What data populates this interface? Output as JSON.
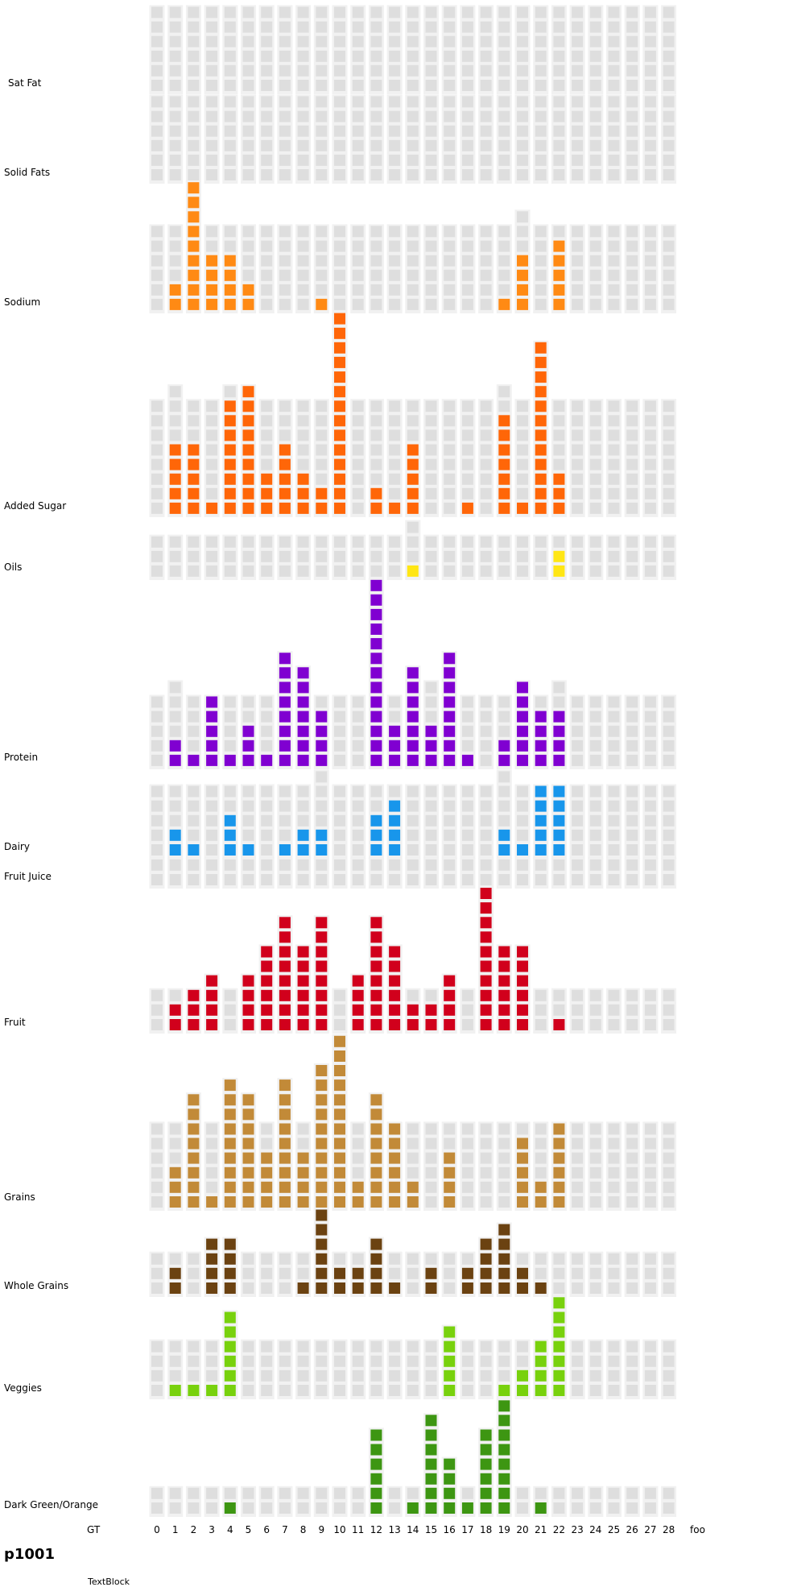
{
  "participant": "p1001",
  "textblock": "TextBlock",
  "chart_data": {
    "type": "heatmap",
    "x_axis_label": "GT",
    "x_ticks": [
      "0",
      "1",
      "2",
      "3",
      "4",
      "5",
      "6",
      "7",
      "8",
      "9",
      "10",
      "11",
      "12",
      "13",
      "14",
      "15",
      "16",
      "17",
      "18",
      "19",
      "20",
      "21",
      "22",
      "23",
      "24",
      "25",
      "26",
      "27",
      "28",
      "foo"
    ],
    "empty_color": "#dedede",
    "rows": [
      {
        "label": "Sat Fat",
        "color": "#dedede",
        "values": [
          0,
          0,
          0,
          0,
          0,
          0,
          0,
          0,
          0,
          0,
          0,
          0,
          0,
          0,
          0,
          0,
          0,
          0,
          0,
          0,
          0,
          0,
          0,
          0,
          0,
          0,
          0,
          0,
          0
        ],
        "target": [
          6,
          6,
          6,
          6,
          6,
          6,
          6,
          6,
          6,
          6,
          6,
          6,
          6,
          6,
          6,
          6,
          6,
          6,
          6,
          6,
          6,
          6,
          6,
          6,
          6,
          6,
          6,
          6,
          6
        ]
      },
      {
        "label": "Solid Fats",
        "color": "#dedede",
        "values": [
          0,
          0,
          0,
          0,
          0,
          0,
          0,
          0,
          0,
          0,
          0,
          0,
          0,
          0,
          0,
          0,
          0,
          0,
          0,
          0,
          0,
          0,
          0,
          0,
          0,
          0,
          0,
          0,
          0
        ],
        "target": [
          6,
          6,
          6,
          6,
          6,
          6,
          6,
          6,
          6,
          6,
          6,
          6,
          6,
          6,
          6,
          6,
          6,
          6,
          6,
          6,
          6,
          6,
          6,
          6,
          6,
          6,
          6,
          6,
          6
        ]
      },
      {
        "label": "Sodium",
        "color": "#ff8a14",
        "values": [
          0,
          2,
          9,
          4,
          4,
          2,
          0,
          0,
          0,
          1,
          0,
          0,
          0,
          0,
          0,
          0,
          0,
          0,
          0,
          1,
          4,
          0,
          5,
          0,
          0,
          0,
          0,
          0,
          0
        ],
        "target": [
          6,
          6,
          6,
          6,
          6,
          6,
          6,
          6,
          6,
          6,
          6,
          6,
          6,
          6,
          6,
          6,
          6,
          6,
          6,
          6,
          7,
          6,
          6,
          6,
          6,
          6,
          6,
          6,
          6
        ]
      },
      {
        "label": "Added Sugar",
        "color": "#ff6608",
        "values": [
          0,
          5,
          5,
          1,
          8,
          9,
          3,
          5,
          3,
          2,
          14,
          0,
          2,
          1,
          5,
          0,
          0,
          1,
          0,
          7,
          1,
          12,
          3,
          0,
          0,
          0,
          0,
          0,
          0
        ],
        "target": [
          8,
          9,
          8,
          8,
          9,
          8,
          8,
          8,
          8,
          8,
          8,
          8,
          8,
          8,
          8,
          8,
          8,
          8,
          8,
          9,
          8,
          8,
          8,
          8,
          8,
          8,
          8,
          8,
          8
        ]
      },
      {
        "label": "Oils",
        "color": "#ffe614",
        "values": [
          0,
          0,
          0,
          0,
          0,
          0,
          0,
          0,
          0,
          0,
          0,
          0,
          0,
          0,
          1,
          0,
          0,
          0,
          0,
          0,
          0,
          0,
          2,
          0,
          0,
          0,
          0,
          0,
          0
        ],
        "target": [
          3,
          3,
          3,
          3,
          3,
          3,
          3,
          3,
          3,
          3,
          3,
          3,
          3,
          3,
          4,
          3,
          3,
          3,
          3,
          3,
          3,
          3,
          3,
          3,
          3,
          3,
          3,
          3,
          3
        ]
      },
      {
        "label": "Protein",
        "color": "#8000d1",
        "values": [
          0,
          2,
          1,
          5,
          1,
          3,
          1,
          8,
          7,
          4,
          0,
          0,
          13,
          3,
          7,
          3,
          8,
          1,
          0,
          2,
          6,
          4,
          4,
          0,
          0,
          0,
          0,
          0,
          0
        ],
        "target": [
          5,
          6,
          5,
          5,
          5,
          5,
          5,
          5,
          5,
          5,
          5,
          5,
          5,
          5,
          5,
          6,
          5,
          5,
          5,
          5,
          5,
          5,
          6,
          5,
          5,
          5,
          5,
          5,
          5
        ]
      },
      {
        "label": "Dairy",
        "color": "#1896eb",
        "values": [
          0,
          2,
          1,
          0,
          3,
          1,
          0,
          1,
          2,
          2,
          0,
          0,
          3,
          4,
          0,
          0,
          0,
          0,
          0,
          2,
          1,
          5,
          5,
          0,
          0,
          0,
          0,
          0,
          0
        ],
        "target": [
          5,
          5,
          5,
          5,
          5,
          5,
          5,
          5,
          5,
          6,
          5,
          5,
          5,
          5,
          5,
          5,
          5,
          5,
          5,
          6,
          5,
          5,
          5,
          5,
          5,
          5,
          5,
          5,
          5
        ]
      },
      {
        "label": "Fruit Juice",
        "color": "#dedede",
        "values": [
          0,
          0,
          0,
          0,
          0,
          0,
          0,
          0,
          0,
          0,
          0,
          0,
          0,
          0,
          0,
          0,
          0,
          0,
          0,
          0,
          0,
          0,
          0,
          0,
          0,
          0,
          0,
          0,
          0
        ],
        "target": [
          2,
          2,
          2,
          2,
          2,
          2,
          2,
          2,
          2,
          2,
          2,
          2,
          2,
          2,
          2,
          2,
          2,
          2,
          2,
          2,
          2,
          2,
          2,
          2,
          2,
          2,
          2,
          2,
          2
        ]
      },
      {
        "label": "Fruit",
        "color": "#d1001c",
        "values": [
          0,
          2,
          3,
          4,
          0,
          4,
          6,
          8,
          6,
          8,
          0,
          4,
          8,
          6,
          2,
          2,
          4,
          0,
          10,
          6,
          6,
          0,
          1,
          0,
          0,
          0,
          0,
          0,
          0
        ],
        "target": [
          3,
          3,
          3,
          3,
          3,
          3,
          3,
          3,
          3,
          3,
          3,
          3,
          3,
          3,
          3,
          3,
          3,
          3,
          3,
          3,
          3,
          3,
          3,
          3,
          3,
          3,
          3,
          3,
          3
        ]
      },
      {
        "label": "Grains",
        "color": "#c28a38",
        "values": [
          0,
          3,
          8,
          1,
          9,
          8,
          4,
          9,
          4,
          10,
          12,
          2,
          8,
          6,
          2,
          0,
          4,
          0,
          0,
          0,
          5,
          2,
          6,
          0,
          0,
          0,
          0,
          0,
          0
        ],
        "target": [
          6,
          6,
          6,
          6,
          6,
          6,
          6,
          6,
          6,
          6,
          6,
          6,
          6,
          6,
          6,
          6,
          6,
          6,
          6,
          6,
          6,
          6,
          6,
          6,
          6,
          6,
          6,
          6,
          6
        ]
      },
      {
        "label": "Whole Grains",
        "color": "#6b4211",
        "values": [
          0,
          2,
          0,
          4,
          4,
          0,
          0,
          0,
          1,
          6,
          2,
          2,
          4,
          1,
          0,
          2,
          0,
          2,
          4,
          5,
          2,
          1,
          0,
          0,
          0,
          0,
          0,
          0,
          0
        ],
        "target": [
          3,
          3,
          3,
          3,
          3,
          3,
          3,
          3,
          3,
          3,
          3,
          3,
          3,
          3,
          3,
          3,
          3,
          3,
          3,
          3,
          3,
          3,
          3,
          3,
          3,
          3,
          3,
          3,
          3
        ]
      },
      {
        "label": "Veggies",
        "color": "#78d10d",
        "values": [
          0,
          1,
          1,
          1,
          6,
          0,
          0,
          0,
          0,
          0,
          0,
          0,
          0,
          0,
          0,
          0,
          5,
          0,
          0,
          1,
          2,
          4,
          7,
          0,
          0,
          0,
          0,
          0,
          0
        ],
        "target": [
          4,
          4,
          4,
          4,
          4,
          4,
          4,
          4,
          4,
          4,
          4,
          4,
          4,
          4,
          4,
          4,
          4,
          4,
          4,
          4,
          4,
          4,
          4,
          4,
          4,
          4,
          4,
          4,
          4
        ]
      },
      {
        "label": "Dark Green/Orange",
        "color": "#3d9612",
        "values": [
          0,
          0,
          0,
          0,
          1,
          0,
          0,
          0,
          0,
          0,
          0,
          0,
          6,
          0,
          1,
          7,
          4,
          1,
          6,
          8,
          0,
          1,
          0,
          0,
          0,
          0,
          0,
          0,
          0
        ],
        "target": [
          2,
          2,
          2,
          2,
          2,
          2,
          2,
          2,
          2,
          2,
          2,
          2,
          2,
          2,
          2,
          2,
          2,
          2,
          2,
          2,
          2,
          2,
          2,
          2,
          2,
          2,
          2,
          2,
          2
        ]
      }
    ]
  }
}
